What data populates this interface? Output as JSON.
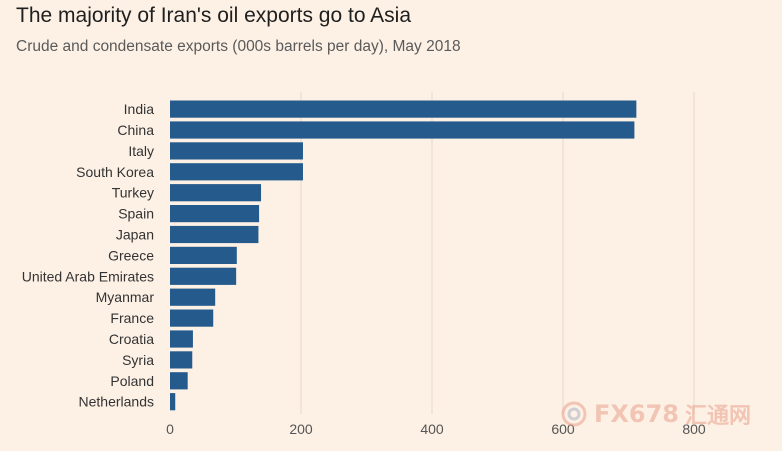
{
  "header": {
    "title": "The majority of Iran's oil exports go to Asia",
    "subtitle": "Crude and condensate exports (000s barrels per day), May 2018"
  },
  "watermark": {
    "text": "FX678",
    "cn_text": "汇通网",
    "icon": "swirl-logo-icon"
  },
  "chart_data": {
    "type": "bar",
    "orientation": "horizontal",
    "title": "The majority of Iran's oil exports go to Asia",
    "subtitle": "Crude and condensate exports (000s barrels per day), May 2018",
    "categories": [
      "India",
      "China",
      "Italy",
      "South Korea",
      "Turkey",
      "Spain",
      "Japan",
      "Greece",
      "United Arab Emirates",
      "Myanmar",
      "France",
      "Croatia",
      "Syria",
      "Poland",
      "Netherlands"
    ],
    "values": [
      712,
      709,
      203,
      203,
      139,
      136,
      135,
      102,
      101,
      69,
      66,
      35,
      34,
      27,
      8
    ],
    "xlim": [
      0,
      800
    ],
    "xticks": [
      0,
      200,
      400,
      600,
      800
    ],
    "grid": true,
    "bar_color": "#245a8c"
  }
}
